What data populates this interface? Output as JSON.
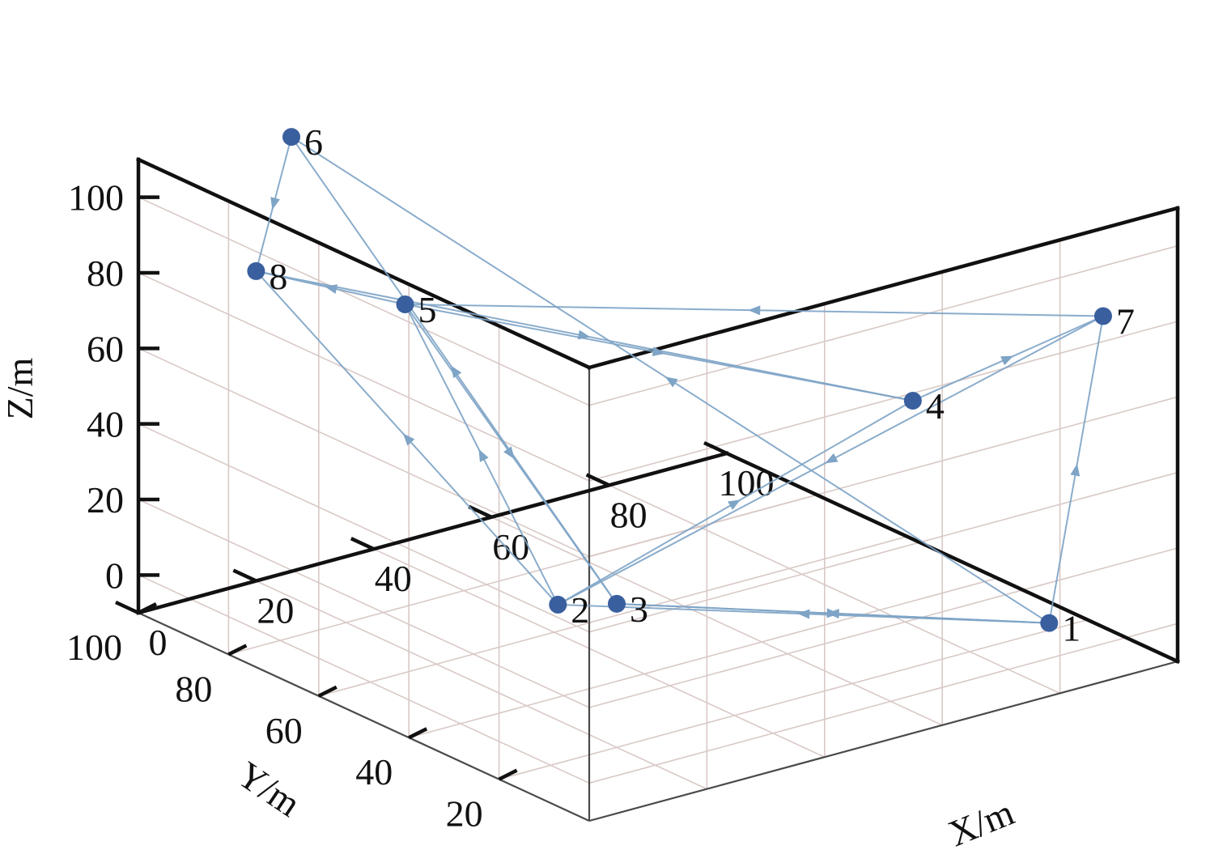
{
  "chart_data": {
    "type": "scatter",
    "projection": "3d",
    "title": "",
    "xlabel": "X/m",
    "ylabel": "Y/m",
    "zlabel": "Z/m",
    "xlim": [
      0,
      100
    ],
    "ylim": [
      0,
      100
    ],
    "zlim": [
      -10,
      110
    ],
    "x_ticks": [
      "0",
      "20",
      "40",
      "60",
      "80",
      "100"
    ],
    "y_ticks": [
      "20",
      "40",
      "60",
      "80",
      "100"
    ],
    "z_ticks": [
      "0",
      "20",
      "40",
      "60",
      "80",
      "100"
    ],
    "grid": true,
    "colors": {
      "point": "#3a5f9e",
      "path": "#7ea4c6",
      "grid": "#d9c9c6",
      "axis": "#111111"
    },
    "points": [
      {
        "label": "1",
        "x": 82,
        "y": 5,
        "z": 5
      },
      {
        "label": "2",
        "x": 10,
        "y": 20,
        "z": 32
      },
      {
        "label": "3",
        "x": 20,
        "y": 20,
        "z": 28
      },
      {
        "label": "4",
        "x": 55,
        "y": 0,
        "z": 78
      },
      {
        "label": "5",
        "x": 30,
        "y": 80,
        "z": 70
      },
      {
        "label": "6",
        "x": 26,
        "y": 100,
        "z": 105
      },
      {
        "label": "7",
        "x": 95,
        "y": 10,
        "z": 78
      },
      {
        "label": "8",
        "x": 20,
        "y": 100,
        "z": 72
      }
    ],
    "path": [
      [
        "1",
        "7"
      ],
      [
        "7",
        "2"
      ],
      [
        "2",
        "4"
      ],
      [
        "4",
        "7"
      ],
      [
        "7",
        "5"
      ],
      [
        "5",
        "4"
      ],
      [
        "5",
        "3"
      ],
      [
        "3",
        "6"
      ],
      [
        "6",
        "8"
      ],
      [
        "8",
        "4"
      ],
      [
        "5",
        "8"
      ],
      [
        "1",
        "2"
      ],
      [
        "2",
        "5"
      ],
      [
        "1",
        "3"
      ],
      [
        "3",
        "1"
      ],
      [
        "2",
        "8"
      ],
      [
        "1",
        "6"
      ]
    ]
  }
}
